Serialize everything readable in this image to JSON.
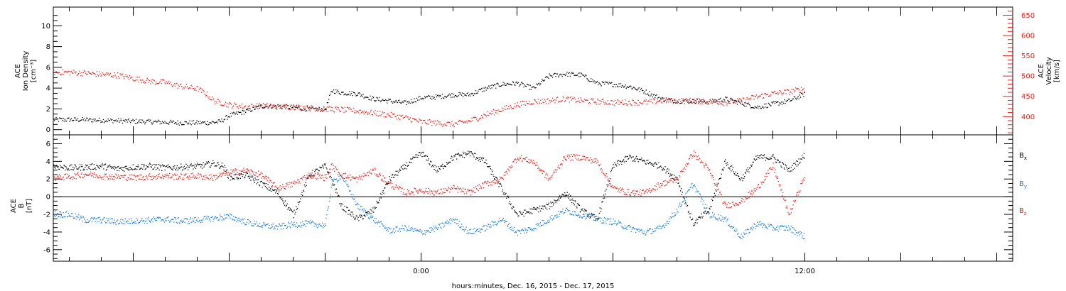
{
  "xlabel": "hours:minutes, Dec. 16, 2015 - Dec. 17, 2015",
  "x_ticks": [
    {
      "t": 0,
      "label": "0:00"
    },
    {
      "t": 12,
      "label": "12:00"
    }
  ],
  "colors": {
    "black": "#000000",
    "red": "#e8201a",
    "blue": "#1a7fd4",
    "axis": "#000000"
  },
  "chart_data": [
    {
      "type": "scatter",
      "title": "",
      "xlabel": "hours:minutes, Dec. 16, 2015 - Dec. 17, 2015",
      "x_unit": "hours relative to Dec. 17, 2015 0:00",
      "xlim": [
        -11.5,
        18.5
      ],
      "ylabel_lines": [
        "ACE",
        "Ion Density",
        "[cm⁻³]"
      ],
      "ylim": [
        -0.5,
        11.8
      ],
      "yticks": [
        0,
        2,
        4,
        6,
        8,
        10
      ],
      "y2label_lines": [
        "ACE",
        "Velocity",
        "[km/s]"
      ],
      "y2lim": [
        355,
        670
      ],
      "y2ticks": [
        400,
        450,
        500,
        550,
        600,
        650
      ],
      "series": [
        {
          "color": "#000000",
          "axis": "left",
          "x": [
            -11.5,
            -10.5,
            -9.5,
            -8.5,
            -7.5,
            -6.7,
            -6.3,
            -6.0,
            -5.5,
            -5.0,
            -4.5,
            -4.0,
            -3.5,
            -3.0,
            -2.8,
            -2.5,
            -2.0,
            -1.5,
            -1.0,
            -0.5,
            0.0,
            0.5,
            1.0,
            1.5,
            2.0,
            2.5,
            3.0,
            3.5,
            4.0,
            4.5,
            5.0,
            5.5,
            6.0,
            6.5,
            7.0,
            7.5,
            8.0,
            8.5,
            9.0,
            9.5,
            10.0,
            10.5,
            11.0,
            11.5,
            12.0
          ],
          "y": [
            1.0,
            1.0,
            0.9,
            0.8,
            0.7,
            0.7,
            0.8,
            1.4,
            1.8,
            2.3,
            2.3,
            2.2,
            2.0,
            2.0,
            3.8,
            3.6,
            3.5,
            3.0,
            2.8,
            2.6,
            3.1,
            3.2,
            3.4,
            3.4,
            4.0,
            4.4,
            4.5,
            4.0,
            5.2,
            5.4,
            5.3,
            4.5,
            4.4,
            4.2,
            3.7,
            3.0,
            2.8,
            2.8,
            2.7,
            3.0,
            2.6,
            2.2,
            2.5,
            2.8,
            3.5
          ]
        },
        {
          "color": "#e8201a",
          "axis": "right",
          "x": [
            -11.5,
            -11.0,
            -10.5,
            -10.0,
            -9.5,
            -9.0,
            -8.5,
            -8.0,
            -7.5,
            -7.0,
            -6.7,
            -6.5,
            -6.0,
            -5.5,
            -5.0,
            -4.5,
            -4.0,
            -3.5,
            -3.0,
            -2.5,
            -2.0,
            -1.5,
            -1.0,
            -0.5,
            0.0,
            0.5,
            1.0,
            1.5,
            2.0,
            2.5,
            3.0,
            3.5,
            4.0,
            4.5,
            5.0,
            5.5,
            6.0,
            6.5,
            7.0,
            7.5,
            8.0,
            8.5,
            9.0,
            9.5,
            10.0,
            10.5,
            11.0,
            11.5,
            12.0
          ],
          "y": [
            510,
            510,
            508,
            505,
            503,
            495,
            488,
            485,
            475,
            470,
            455,
            440,
            430,
            425,
            428,
            425,
            425,
            422,
            420,
            418,
            415,
            410,
            405,
            398,
            388,
            385,
            382,
            390,
            405,
            418,
            430,
            438,
            440,
            445,
            440,
            438,
            436,
            436,
            436,
            440,
            440,
            440,
            438,
            436,
            440,
            450,
            458,
            462,
            470
          ]
        }
      ]
    },
    {
      "type": "scatter",
      "title": "",
      "xlabel": "hours:minutes, Dec. 16, 2015 - Dec. 17, 2015",
      "x_unit": "hours relative to Dec. 17, 2015 0:00",
      "xlim": [
        -11.5,
        18.5
      ],
      "ylabel_lines": [
        "ACE",
        "B",
        "[nT]"
      ],
      "ylim": [
        -7.3,
        7.0
      ],
      "yticks": [
        -6,
        -4,
        -2,
        0,
        2,
        4,
        6
      ],
      "zero_line": true,
      "legend": "right",
      "series": [
        {
          "name": "Bx",
          "label_main": "B",
          "label_sub": "x",
          "color": "#000000",
          "x": [
            -11.5,
            -11.0,
            -10.5,
            -10.0,
            -9.5,
            -9.0,
            -8.5,
            -8.0,
            -7.5,
            -7.0,
            -6.5,
            -6.2,
            -6.0,
            -5.5,
            -5.0,
            -4.5,
            -4.0,
            -3.5,
            -3.0,
            -2.8,
            -2.5,
            -2.0,
            -1.5,
            -1.0,
            -0.5,
            0.0,
            0.5,
            1.0,
            1.5,
            2.0,
            2.5,
            3.0,
            3.5,
            4.0,
            4.5,
            5.0,
            5.5,
            6.0,
            6.5,
            7.0,
            7.5,
            8.0,
            8.5,
            9.0,
            9.5,
            10.0,
            10.5,
            11.0,
            11.5,
            12.0
          ],
          "y": [
            3.5,
            3.3,
            3.4,
            3.5,
            3.2,
            3.4,
            3.5,
            3.3,
            3.4,
            3.5,
            3.8,
            3.5,
            2.2,
            2.5,
            1.5,
            0.5,
            -2.0,
            2.5,
            3.5,
            2.0,
            -1.0,
            -2.5,
            -1.5,
            2.0,
            3.5,
            5.0,
            3.0,
            4.5,
            5.0,
            4.0,
            1.0,
            -2.0,
            -1.5,
            -1.0,
            0.5,
            -1.5,
            -2.5,
            3.5,
            4.5,
            4.0,
            3.5,
            2.0,
            -3.0,
            -1.5,
            4.0,
            2.0,
            4.5,
            4.5,
            3.0,
            4.8
          ]
        },
        {
          "name": "By",
          "label_main": "B",
          "label_sub": "y",
          "color": "#1a7fd4",
          "x": [
            -11.5,
            -11.0,
            -10.5,
            -10.0,
            -9.5,
            -9.0,
            -8.5,
            -8.0,
            -7.5,
            -7.0,
            -6.5,
            -6.0,
            -5.5,
            -5.0,
            -4.5,
            -4.0,
            -3.5,
            -3.0,
            -2.8,
            -2.5,
            -2.0,
            -1.5,
            -1.0,
            -0.5,
            0.0,
            0.5,
            1.0,
            1.5,
            2.0,
            2.5,
            3.0,
            3.5,
            4.0,
            4.5,
            5.0,
            5.5,
            6.0,
            6.5,
            7.0,
            7.5,
            8.0,
            8.5,
            9.0,
            9.5,
            10.0,
            10.5,
            11.0,
            11.5,
            12.0
          ],
          "y": [
            -1.9,
            -2.0,
            -2.6,
            -2.6,
            -2.8,
            -2.7,
            -2.6,
            -2.5,
            -2.7,
            -2.6,
            -2.4,
            -2.2,
            -2.8,
            -3.2,
            -3.4,
            -3.1,
            -3.0,
            -3.2,
            1.5,
            2.5,
            -1.0,
            -2.5,
            -3.8,
            -3.5,
            -4.0,
            -3.5,
            -2.5,
            -4.0,
            -3.5,
            -2.5,
            -4.0,
            -3.5,
            -2.5,
            -1.5,
            -2.0,
            -2.5,
            -2.8,
            -3.5,
            -4.0,
            -3.5,
            -1.5,
            1.5,
            -2.0,
            -2.5,
            -4.5,
            -3.0,
            -3.5,
            -3.5,
            -4.5
          ]
        },
        {
          "name": "Bz",
          "label_main": "B",
          "label_sub": "z",
          "color": "#e8201a",
          "x": [
            -11.5,
            -11.0,
            -10.5,
            -10.0,
            -9.5,
            -9.0,
            -8.5,
            -8.0,
            -7.5,
            -7.0,
            -6.5,
            -6.0,
            -5.5,
            -5.0,
            -4.5,
            -4.0,
            -3.5,
            -3.0,
            -2.8,
            -2.5,
            -2.0,
            -1.5,
            -1.0,
            -0.5,
            0.0,
            0.5,
            1.0,
            1.5,
            2.0,
            2.5,
            3.0,
            3.5,
            4.0,
            4.5,
            5.0,
            5.5,
            6.0,
            6.5,
            7.0,
            7.5,
            8.0,
            8.5,
            9.0,
            9.5,
            10.0,
            10.5,
            11.0,
            11.5,
            12.0
          ],
          "y": [
            2.2,
            2.3,
            2.6,
            2.4,
            2.3,
            2.2,
            2.3,
            2.4,
            2.3,
            2.4,
            2.2,
            2.8,
            3.0,
            2.5,
            1.0,
            1.5,
            2.5,
            2.2,
            3.5,
            2.5,
            2.0,
            3.0,
            1.5,
            0.5,
            0.8,
            0.5,
            1.0,
            0.5,
            1.5,
            2.0,
            4.5,
            4.0,
            2.0,
            4.5,
            4.5,
            4.0,
            1.0,
            0.5,
            0.5,
            1.5,
            2.0,
            5.0,
            3.0,
            -1.0,
            -0.5,
            1.0,
            3.5,
            -2.0,
            2.5
          ]
        }
      ]
    }
  ]
}
